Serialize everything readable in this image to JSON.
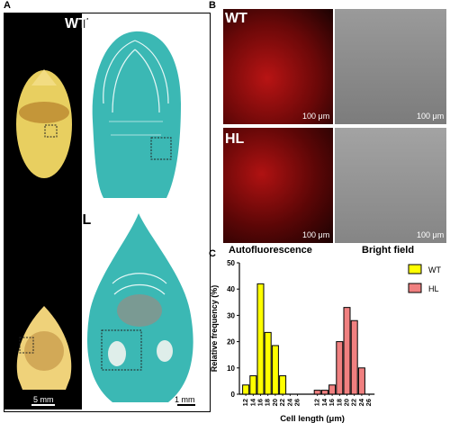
{
  "panel_labels": {
    "a": "A",
    "b": "B",
    "c": "C"
  },
  "panel_a": {
    "wt_label": "WT",
    "hl_label": "HL",
    "scale_left": "5 mm",
    "scale_right": "1 mm"
  },
  "panel_b": {
    "wt_label": "WT",
    "hl_label": "HL",
    "scale_text": "100 μm",
    "caption_left": "Autofluorescence",
    "caption_right": "Bright field"
  },
  "colors": {
    "wt": "#ffff00",
    "hl": "#f08080",
    "fluor": "#cc1010",
    "stain": "#3bb8b4"
  },
  "chart_data": {
    "type": "bar",
    "xlabel": "Cell length (μm)",
    "ylabel": "Relative frequency (%)",
    "ylim": [
      0,
      50
    ],
    "yticks": [
      "0",
      "10",
      "20",
      "30",
      "40",
      "50"
    ],
    "grid": false,
    "legend_position": "top-right",
    "x_ticks_left": [
      "12",
      "14",
      "16",
      "18",
      "20",
      "22",
      "24",
      "26"
    ],
    "x_ticks_right": [
      "12",
      "14",
      "16",
      "18",
      "20",
      "22",
      "24",
      "26"
    ],
    "series": [
      {
        "name": "WT",
        "categories": [
          "12",
          "14",
          "16",
          "18",
          "20",
          "22"
        ],
        "values": [
          3.5,
          7,
          42,
          23.5,
          18.5,
          7
        ]
      },
      {
        "name": "HL",
        "categories": [
          "12",
          "14",
          "16",
          "18",
          "20",
          "22",
          "24"
        ],
        "values": [
          1.5,
          1.5,
          3.5,
          20,
          33,
          28,
          10
        ]
      }
    ]
  }
}
